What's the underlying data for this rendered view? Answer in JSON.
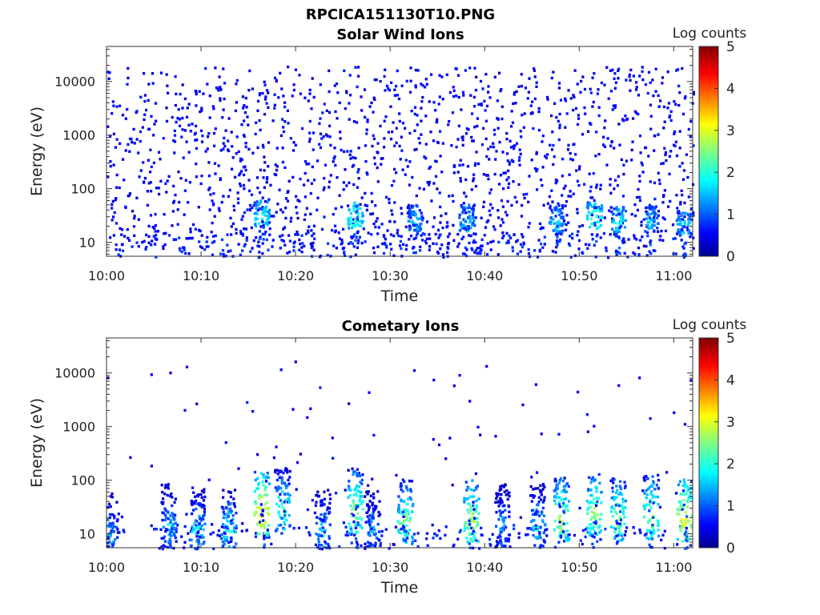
{
  "figure_title": "RPCICA151130T10.PNG",
  "chart_data": [
    {
      "type": "heatmap",
      "title": "Solar Wind Ions",
      "xlabel": "Time",
      "ylabel": "Energy (eV)",
      "x_ticks": [
        "10:00",
        "10:10",
        "10:20",
        "10:30",
        "10:40",
        "10:50",
        "11:00"
      ],
      "x_range": [
        "10:00",
        "11:02"
      ],
      "y_scale": "log",
      "y_ticks": [
        10,
        100,
        1000,
        10000
      ],
      "y_tick_labels": [
        "10",
        "100",
        "1000",
        "10000"
      ],
      "y_range": [
        5.5,
        45000
      ],
      "colorbar": {
        "label": "Log counts",
        "range": [
          0,
          5
        ],
        "ticks": [
          "0",
          "1",
          "2",
          "3",
          "4",
          "5"
        ],
        "colormap": "jet"
      },
      "features": [
        {
          "time_min": 16.3,
          "energy_ev": 30,
          "log_counts": 2.2
        },
        {
          "time_min": 26.2,
          "energy_ev": 28,
          "log_counts": 2.3
        },
        {
          "time_min": 32.5,
          "energy_ev": 25,
          "log_counts": 1.8
        },
        {
          "time_min": 38.0,
          "energy_ev": 25,
          "log_counts": 1.9
        },
        {
          "time_min": 47.5,
          "energy_ev": 25,
          "log_counts": 1.8
        },
        {
          "time_min": 51.5,
          "energy_ev": 28,
          "log_counts": 2.4
        },
        {
          "time_min": 54.0,
          "energy_ev": 25,
          "log_counts": 2.0
        },
        {
          "time_min": 57.5,
          "energy_ev": 25,
          "log_counts": 1.7
        },
        {
          "time_min": 61.0,
          "energy_ev": 22,
          "log_counts": 1.9
        }
      ],
      "background": "sparse low counts (~0.5 log counts) scattered from 10 to 20000 eV"
    },
    {
      "type": "heatmap",
      "title": "Cometary Ions",
      "xlabel": "Time",
      "ylabel": "Energy (eV)",
      "x_ticks": [
        "10:00",
        "10:10",
        "10:20",
        "10:30",
        "10:40",
        "10:50",
        "11:00"
      ],
      "x_range": [
        "10:00",
        "11:02"
      ],
      "y_scale": "log",
      "y_ticks": [
        10,
        100,
        1000,
        10000
      ],
      "y_tick_labels": [
        "10",
        "100",
        "1000",
        "10000"
      ],
      "y_range": [
        5.5,
        45000
      ],
      "colorbar": {
        "label": "Log counts",
        "range": [
          0,
          5
        ],
        "ticks": [
          "0",
          "1",
          "2",
          "3",
          "4",
          "5"
        ],
        "colormap": "jet"
      },
      "features": [
        {
          "time_min": 0.3,
          "energy_ev": 10,
          "log_counts": 1.6
        },
        {
          "time_min": 6.5,
          "energy_ev": 15,
          "log_counts": 1.8
        },
        {
          "time_min": 9.5,
          "energy_ev": 12,
          "log_counts": 2.0
        },
        {
          "time_min": 12.8,
          "energy_ev": 12,
          "log_counts": 2.1
        },
        {
          "time_min": 16.3,
          "energy_ev": 25,
          "log_counts": 3.4
        },
        {
          "time_min": 18.5,
          "energy_ev": 30,
          "log_counts": 2.4
        },
        {
          "time_min": 22.8,
          "energy_ev": 12,
          "log_counts": 1.9
        },
        {
          "time_min": 26.2,
          "energy_ev": 28,
          "log_counts": 2.8
        },
        {
          "time_min": 28.0,
          "energy_ev": 12,
          "log_counts": 1.6
        },
        {
          "time_min": 31.5,
          "energy_ev": 18,
          "log_counts": 2.6
        },
        {
          "time_min": 38.5,
          "energy_ev": 18,
          "log_counts": 2.9
        },
        {
          "time_min": 41.8,
          "energy_ev": 15,
          "log_counts": 1.6
        },
        {
          "time_min": 45.5,
          "energy_ev": 15,
          "log_counts": 2.0
        },
        {
          "time_min": 48.0,
          "energy_ev": 20,
          "log_counts": 2.9
        },
        {
          "time_min": 51.5,
          "energy_ev": 25,
          "log_counts": 2.8
        },
        {
          "time_min": 54.0,
          "energy_ev": 20,
          "log_counts": 2.7
        },
        {
          "time_min": 57.5,
          "energy_ev": 22,
          "log_counts": 2.7
        },
        {
          "time_min": 61.0,
          "energy_ev": 20,
          "log_counts": 3.2
        }
      ],
      "background": "vertical bursts of ions extending from ~10 eV up to several hundred eV, sparse points up to 30000 eV"
    }
  ]
}
